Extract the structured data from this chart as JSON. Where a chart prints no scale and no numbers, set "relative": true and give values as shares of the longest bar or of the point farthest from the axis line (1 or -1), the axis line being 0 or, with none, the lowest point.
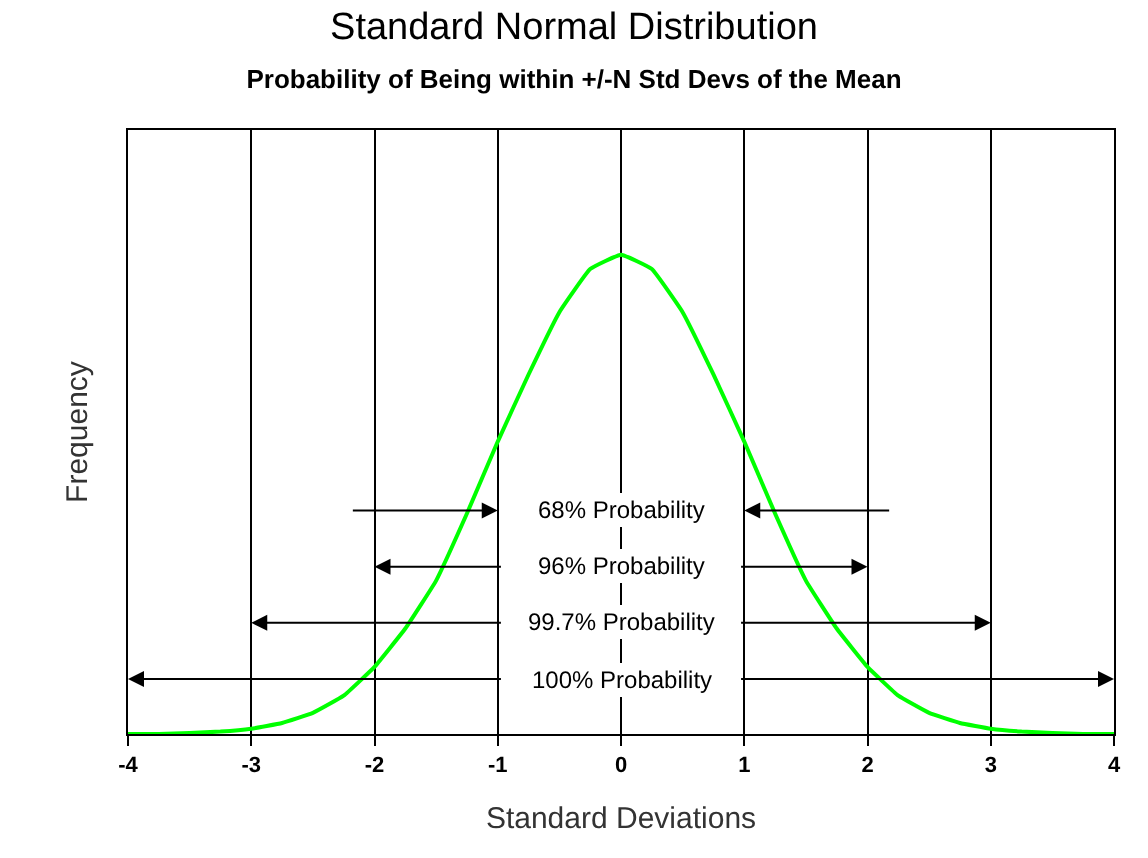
{
  "chart_data": {
    "type": "line",
    "title": "Standard Normal Distribution",
    "subtitle": "Probability of Being within +/-N Std Devs of the Mean",
    "xlabel": "Standard Deviations",
    "ylabel": "Frequency",
    "relative": true,
    "x": [
      -4,
      -3.75,
      -3.5,
      -3.25,
      -3,
      -2.75,
      -2.5,
      -2.25,
      -2,
      -1.75,
      -1.5,
      -1.25,
      -1,
      -0.75,
      -0.5,
      -0.25,
      0,
      0.25,
      0.5,
      0.75,
      1,
      1.25,
      1.5,
      1.75,
      2,
      2.25,
      2.5,
      2.75,
      3,
      3.25,
      3.5,
      3.75,
      4
    ],
    "series": [
      {
        "color": "#00ff00",
        "values": [
          0,
          0,
          0.002,
          0.005,
          0.011,
          0.023,
          0.044,
          0.08,
          0.14,
          0.22,
          0.32,
          0.46,
          0.61,
          0.75,
          0.88,
          0.97,
          1,
          0.97,
          0.88,
          0.75,
          0.61,
          0.46,
          0.32,
          0.22,
          0.14,
          0.08,
          0.044,
          0.023,
          0.011,
          0.005,
          0.002,
          0,
          0
        ]
      }
    ],
    "xlim": [
      -4,
      4
    ],
    "xticks": [
      -4,
      -3,
      -2,
      -1,
      0,
      1,
      2,
      3,
      4
    ],
    "grid": "x",
    "tick_labels": "x",
    "marker": "none",
    "line_style": "solid",
    "annotations": [
      "68% Probability",
      "96% Probability",
      "99.7% Probability",
      "100% Probability"
    ]
  }
}
